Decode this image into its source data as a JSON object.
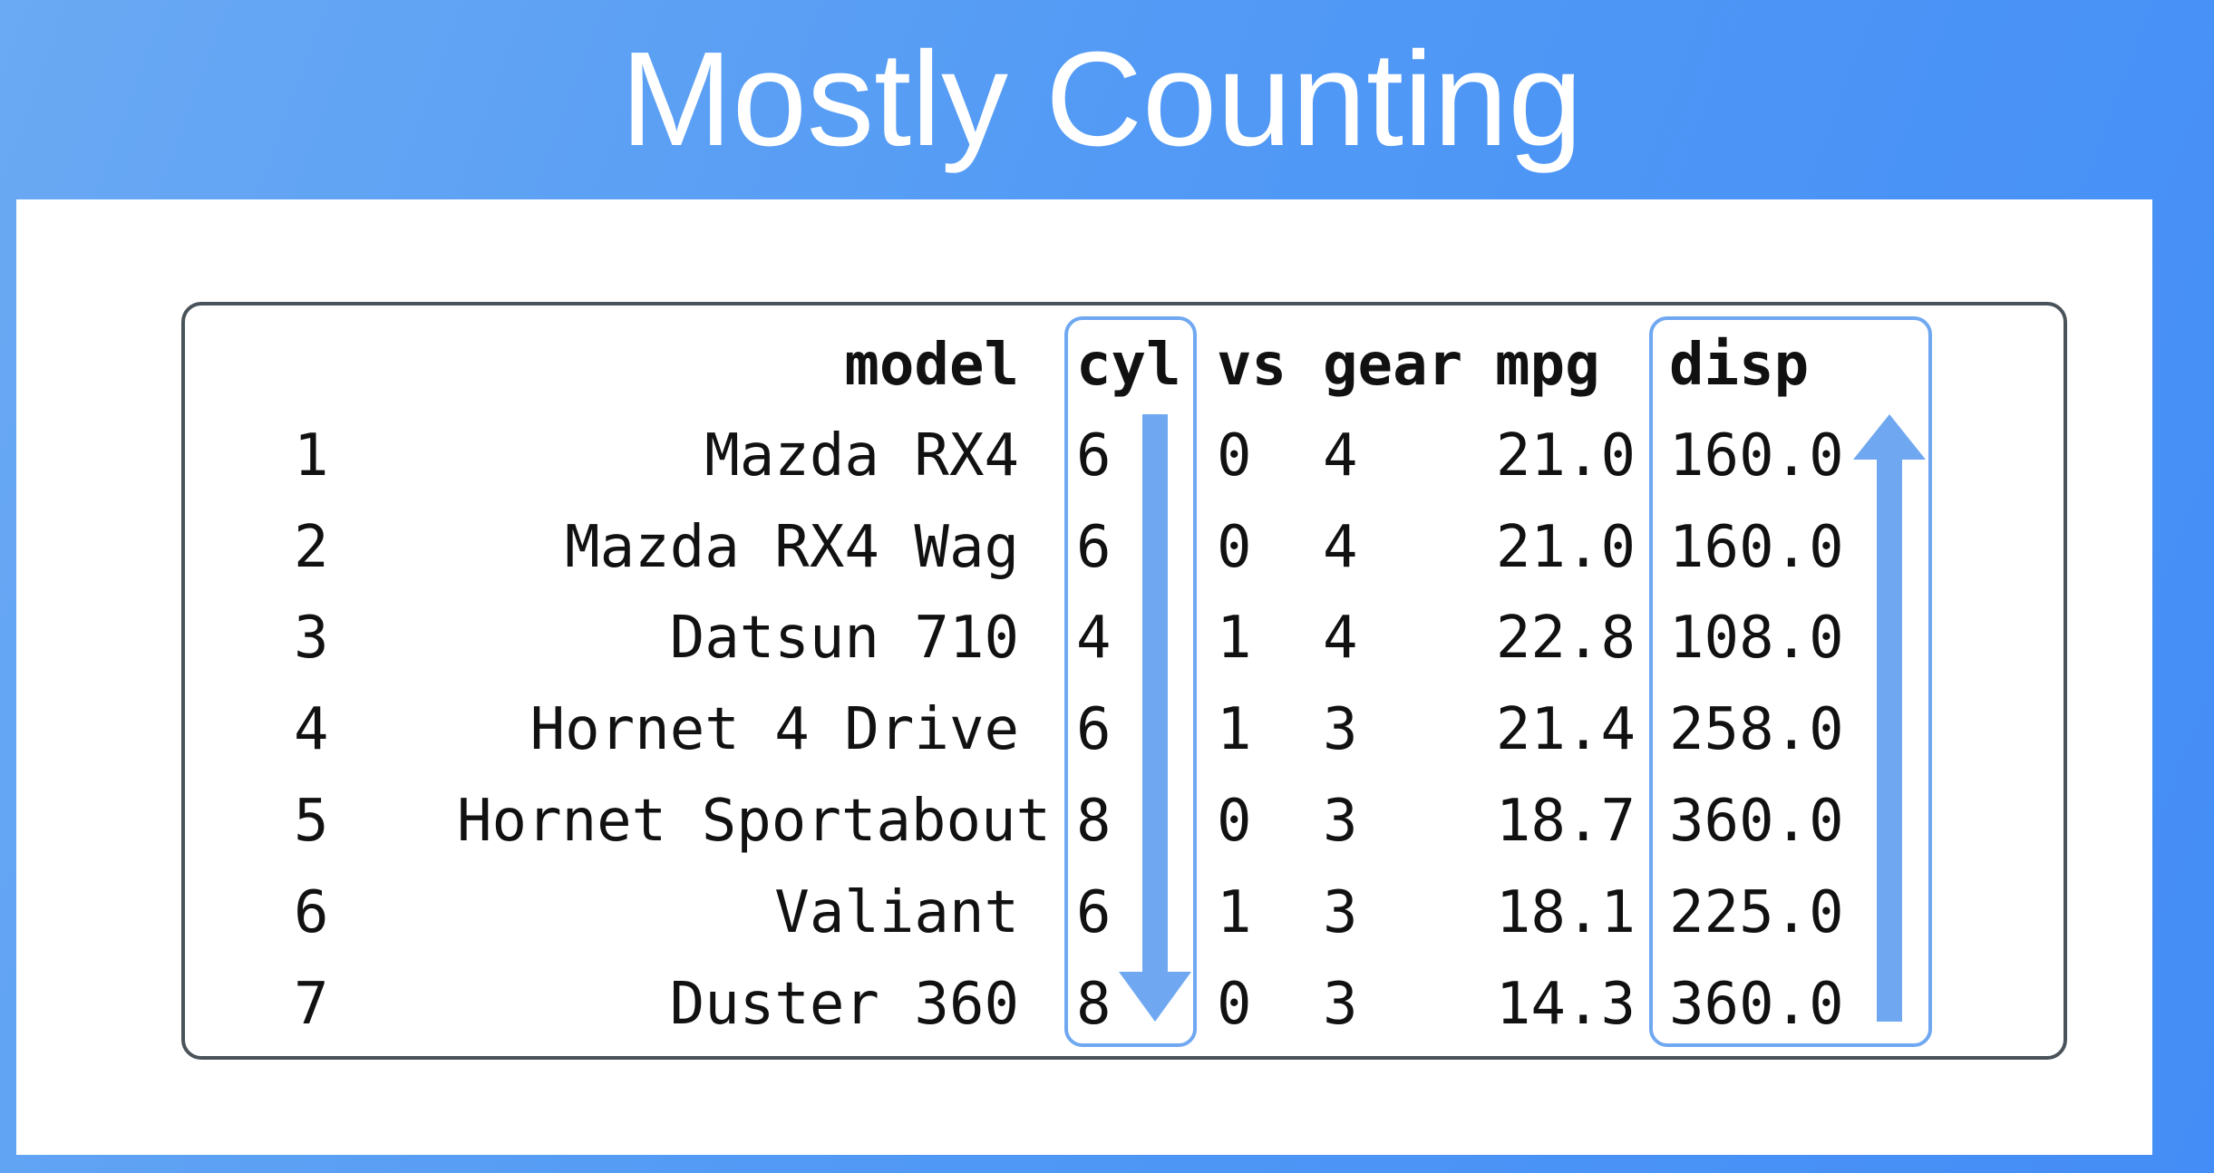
{
  "title": "Mostly Counting",
  "table": {
    "columns": [
      "model",
      "cyl",
      "vs",
      "gear",
      "mpg",
      "disp"
    ],
    "rows": [
      {
        "idx": "1",
        "model": "Mazda RX4",
        "cyl": "6",
        "vs": "0",
        "gear": "4",
        "mpg": "21.0",
        "disp": "160.0"
      },
      {
        "idx": "2",
        "model": "Mazda RX4 Wag",
        "cyl": "6",
        "vs": "0",
        "gear": "4",
        "mpg": "21.0",
        "disp": "160.0"
      },
      {
        "idx": "3",
        "model": "Datsun 710",
        "cyl": "4",
        "vs": "1",
        "gear": "4",
        "mpg": "22.8",
        "disp": "108.0"
      },
      {
        "idx": "4",
        "model": "Hornet 4 Drive",
        "cyl": "6",
        "vs": "1",
        "gear": "3",
        "mpg": "21.4",
        "disp": "258.0"
      },
      {
        "idx": "5",
        "model": "Hornet Sportabout",
        "cyl": "8",
        "vs": "0",
        "gear": "3",
        "mpg": "18.7",
        "disp": "360.0"
      },
      {
        "idx": "6",
        "model": "Valiant",
        "cyl": "6",
        "vs": "1",
        "gear": "3",
        "mpg": "18.1",
        "disp": "225.0"
      },
      {
        "idx": "7",
        "model": "Duster 360",
        "cyl": "8",
        "vs": "0",
        "gear": "3",
        "mpg": "14.3",
        "disp": "360.0"
      }
    ]
  },
  "highlights": {
    "cyl": {
      "direction": "down",
      "color": "#6fa8f1"
    },
    "disp": {
      "direction": "up",
      "color": "#6fa8f1"
    }
  }
}
